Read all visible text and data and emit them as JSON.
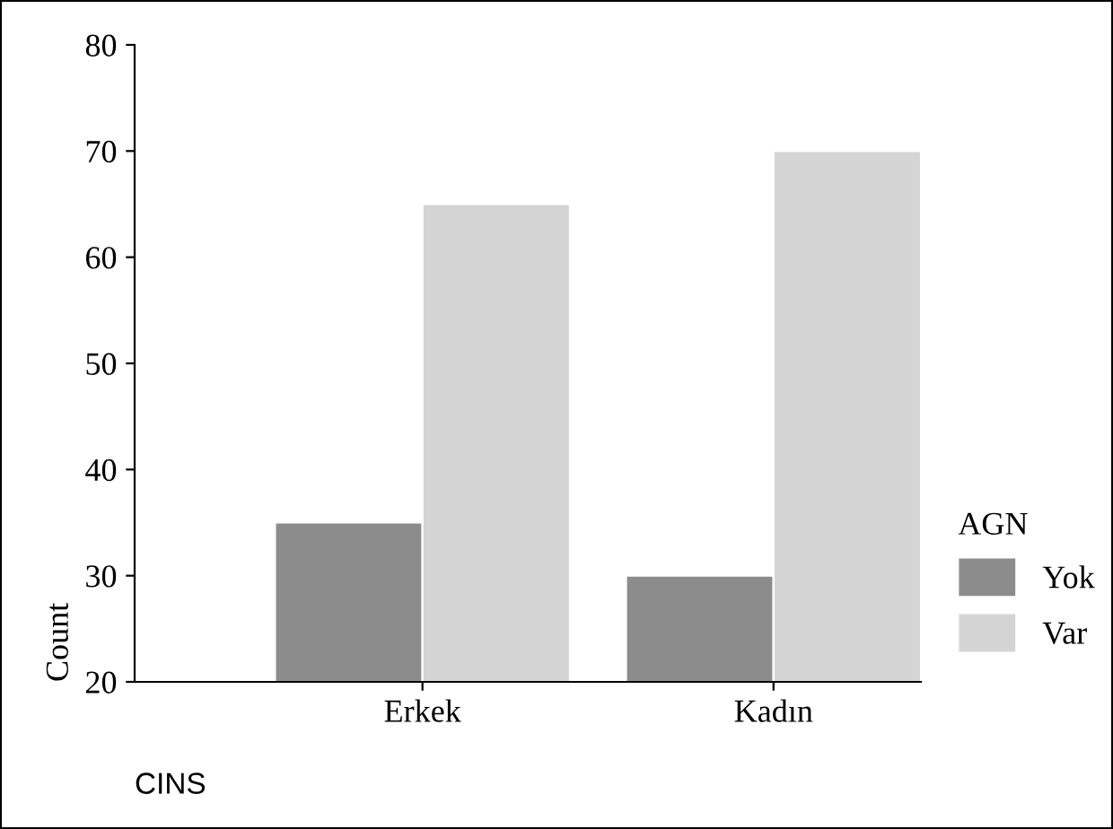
{
  "chart_data": {
    "type": "bar",
    "xlabel": "CINS",
    "ylabel": "Count",
    "legend_title": "AGN",
    "categories": [
      "Erkek",
      "Kadın"
    ],
    "series": [
      {
        "name": "Yok",
        "color": "#8c8c8c",
        "values": [
          35,
          30
        ]
      },
      {
        "name": "Var",
        "color": "#d4d4d4",
        "values": [
          65,
          70
        ]
      }
    ],
    "ylim": [
      20,
      80
    ],
    "yticks": [
      20,
      30,
      40,
      50,
      60,
      70,
      80
    ],
    "grid": false,
    "legend": "right"
  }
}
